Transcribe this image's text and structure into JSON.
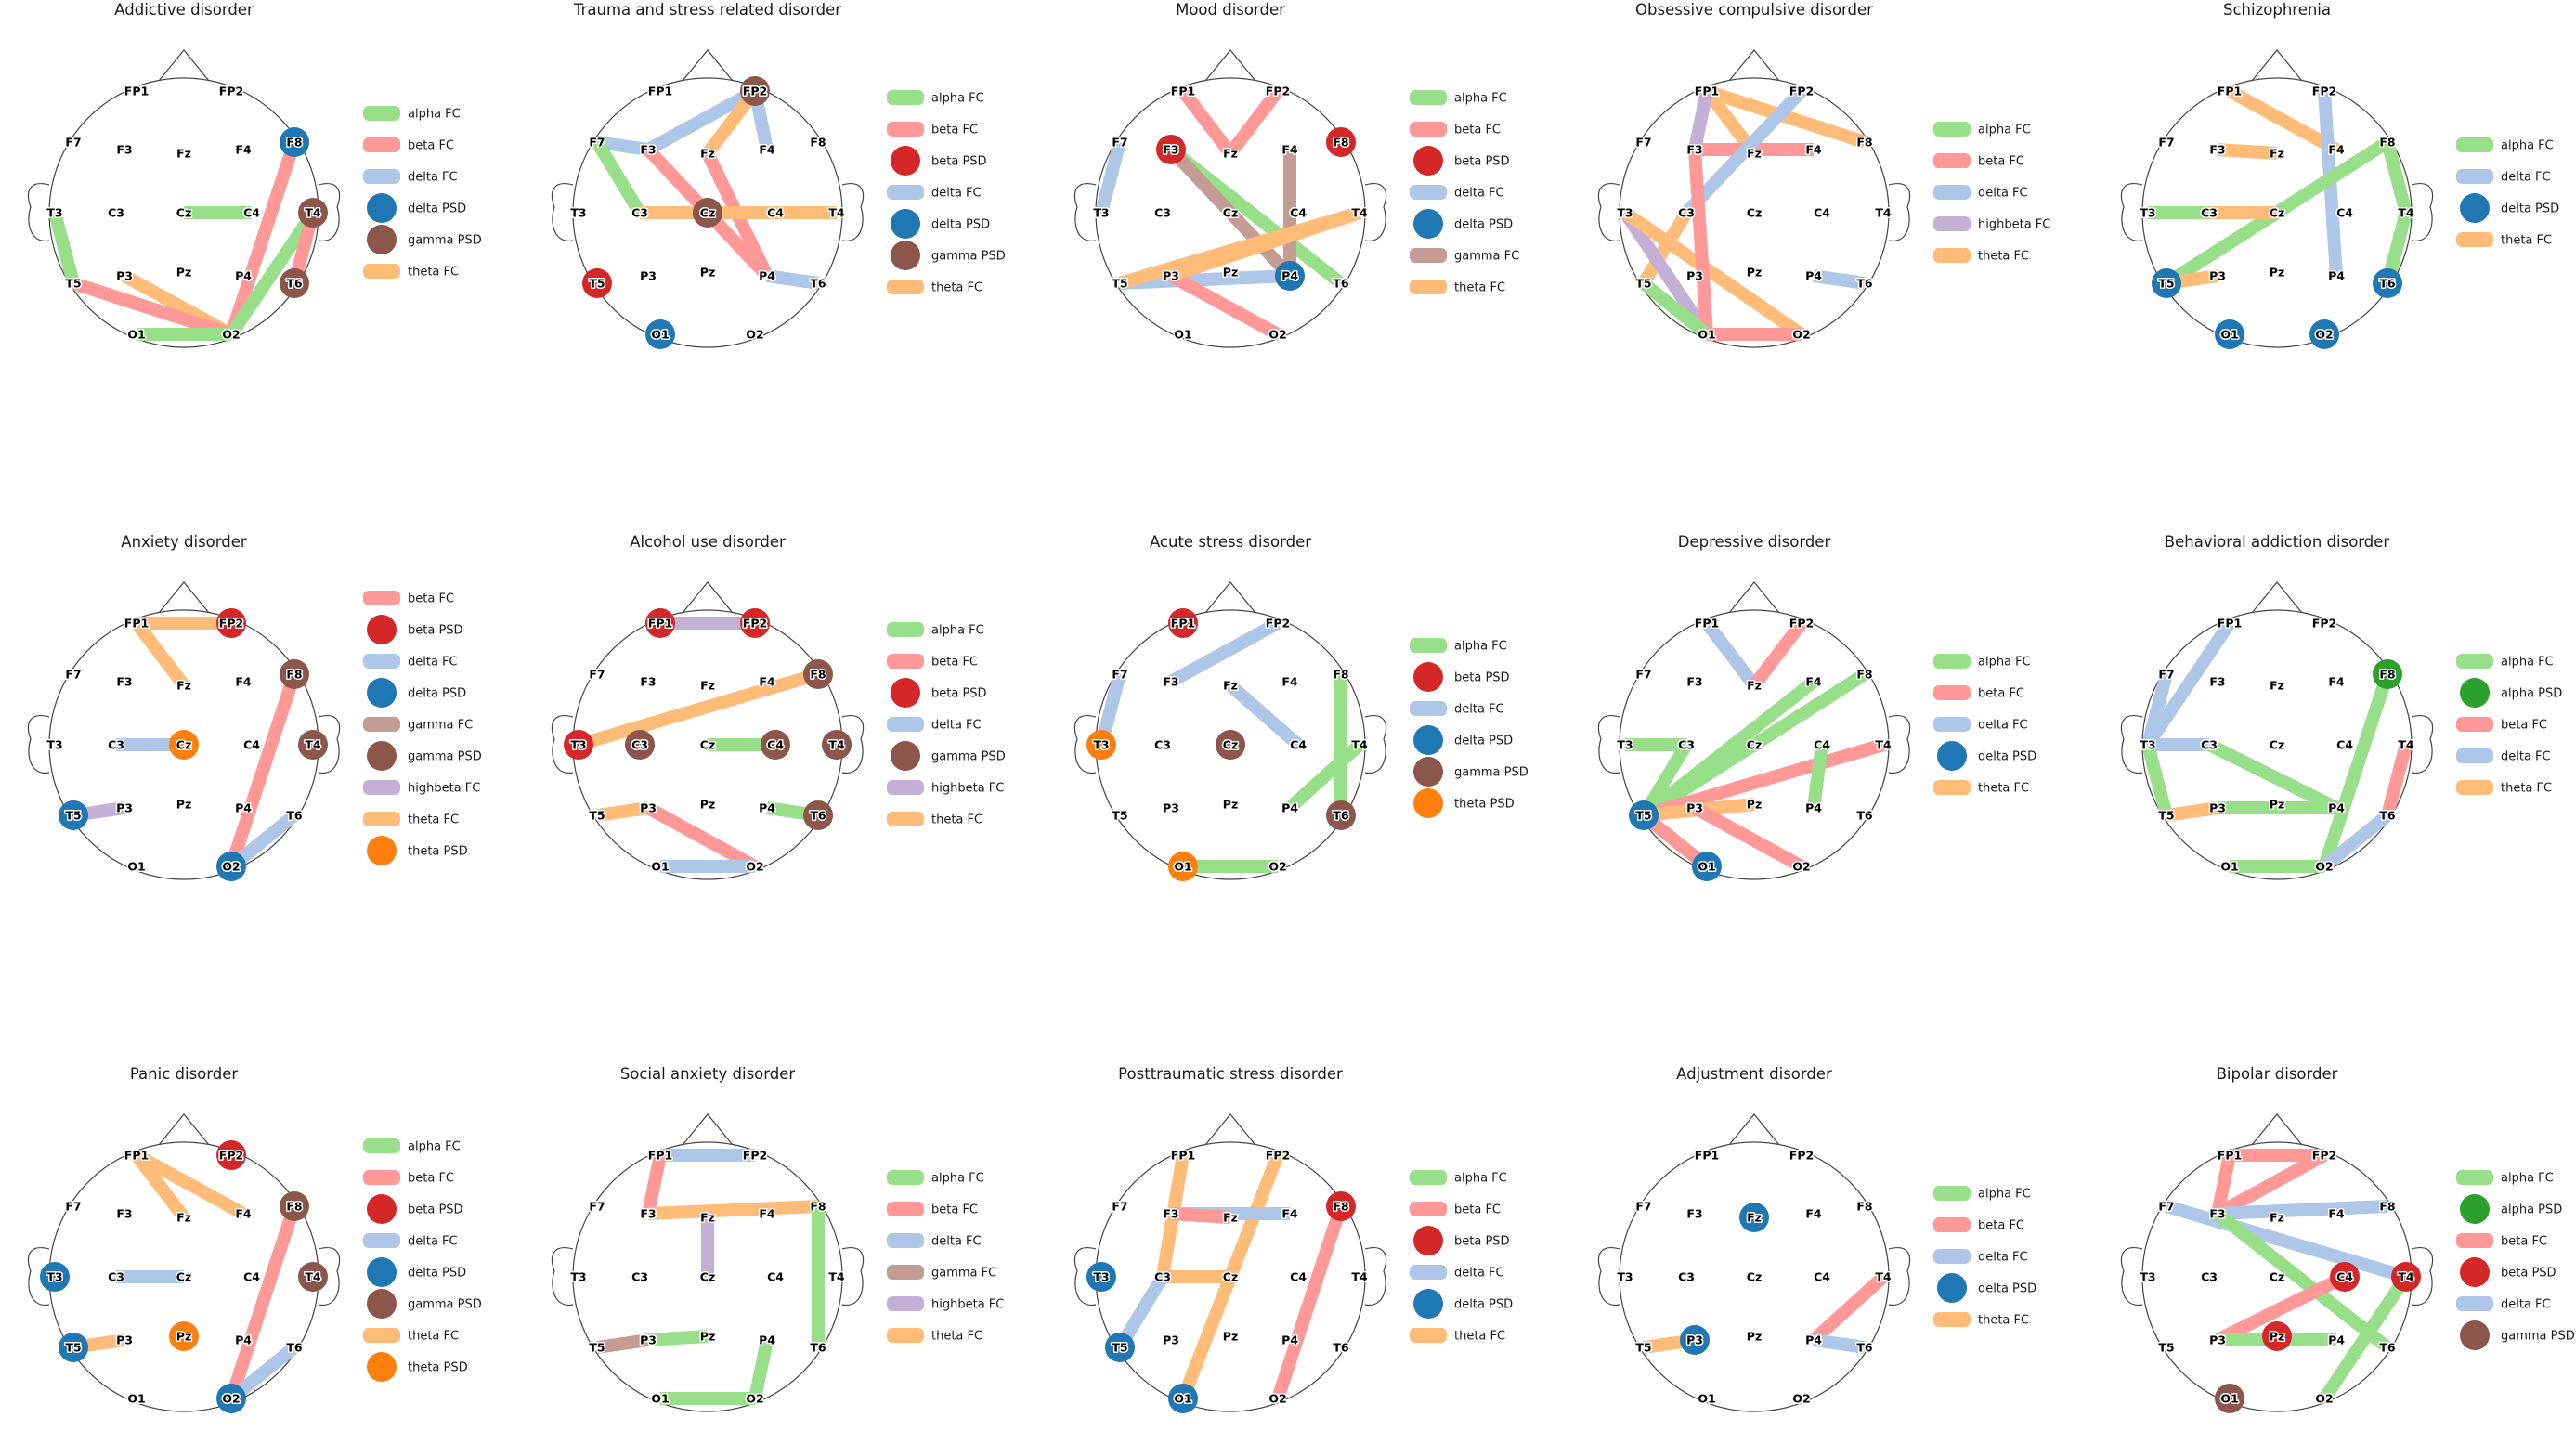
{
  "colors": {
    "alpha FC": "#98df8a",
    "beta FC": "#ff9896",
    "delta FC": "#aec7e8",
    "theta FC": "#ffbb78",
    "gamma FC": "#c49c94",
    "highbeta FC": "#c5b0d5",
    "alpha PSD": "#2ca02c",
    "beta PSD": "#d62728",
    "delta PSD": "#1f77b4",
    "gamma PSD": "#8c564b",
    "theta PSD": "#ff7f0e"
  },
  "electrodes": [
    "FP1",
    "FP2",
    "F7",
    "F3",
    "Fz",
    "F4",
    "F8",
    "T3",
    "C3",
    "Cz",
    "C4",
    "T4",
    "T5",
    "P3",
    "Pz",
    "P4",
    "T6",
    "O1",
    "O2"
  ],
  "panels": [
    {
      "title": "Addictive disorder",
      "fc": [
        [
          "T3",
          "T5",
          "alpha FC"
        ],
        [
          "T5",
          "O2",
          "theta FC"
        ],
        [
          "P3",
          "O2",
          "theta FC"
        ],
        [
          "T5",
          "O2",
          "beta FC"
        ],
        [
          "Cz",
          "C4",
          "alpha FC"
        ],
        [
          "O1",
          "O2",
          "alpha FC"
        ],
        [
          "O2",
          "F8",
          "beta FC"
        ],
        [
          "O2",
          "T4",
          "alpha FC"
        ],
        [
          "T6",
          "T4",
          "beta FC"
        ]
      ],
      "psd": [
        [
          "F8",
          "delta PSD"
        ],
        [
          "T4",
          "gamma PSD"
        ],
        [
          "T6",
          "gamma PSD"
        ]
      ],
      "legend": [
        "alpha FC",
        "beta FC",
        "delta FC",
        "delta PSD",
        "gamma PSD",
        "theta FC"
      ]
    },
    {
      "title": "Trauma and stress related disorder",
      "fc": [
        [
          "F7",
          "F3",
          "delta FC"
        ],
        [
          "F7",
          "C3",
          "alpha FC"
        ],
        [
          "F3",
          "FP2",
          "delta FC"
        ],
        [
          "F3",
          "P4",
          "beta FC"
        ],
        [
          "Fz",
          "FP2",
          "theta FC"
        ],
        [
          "Fz",
          "P4",
          "beta FC"
        ],
        [
          "FP2",
          "F4",
          "delta FC"
        ],
        [
          "C3",
          "C4",
          "theta FC"
        ],
        [
          "C4",
          "T4",
          "theta FC"
        ],
        [
          "P4",
          "T6",
          "delta FC"
        ]
      ],
      "psd": [
        [
          "FP2",
          "gamma PSD"
        ],
        [
          "Cz",
          "gamma PSD"
        ],
        [
          "T5",
          "beta PSD"
        ],
        [
          "O1",
          "delta PSD"
        ]
      ],
      "legend": [
        "alpha FC",
        "beta FC",
        "beta PSD",
        "delta FC",
        "delta PSD",
        "gamma PSD",
        "theta FC"
      ]
    },
    {
      "title": "Mood disorder",
      "fc": [
        [
          "FP1",
          "Fz",
          "beta FC"
        ],
        [
          "Fz",
          "FP2",
          "beta FC"
        ],
        [
          "F7",
          "T3",
          "delta FC"
        ],
        [
          "F3",
          "T6",
          "alpha FC"
        ],
        [
          "F3",
          "P4",
          "gamma FC"
        ],
        [
          "F4",
          "P4",
          "gamma FC"
        ],
        [
          "T5",
          "P4",
          "delta FC"
        ],
        [
          "T5",
          "T4",
          "theta FC"
        ],
        [
          "P3",
          "O2",
          "beta FC"
        ],
        [
          "P3",
          "T4",
          "theta FC"
        ]
      ],
      "psd": [
        [
          "F3",
          "beta PSD"
        ],
        [
          "F8",
          "beta PSD"
        ],
        [
          "P4",
          "delta PSD"
        ]
      ],
      "legend": [
        "alpha FC",
        "beta FC",
        "beta PSD",
        "delta FC",
        "delta PSD",
        "gamma FC",
        "theta FC"
      ]
    },
    {
      "title": "Obsessive compulsive disorder",
      "fc": [
        [
          "FP1",
          "F8",
          "theta FC"
        ],
        [
          "FP1",
          "Fz",
          "theta FC"
        ],
        [
          "F3",
          "F4",
          "beta FC"
        ],
        [
          "FP1",
          "F3",
          "highbeta FC"
        ],
        [
          "FP2",
          "C3",
          "delta FC"
        ],
        [
          "C3",
          "T5",
          "theta FC"
        ],
        [
          "T3",
          "O1",
          "highbeta FC"
        ],
        [
          "T3",
          "O2",
          "theta FC"
        ],
        [
          "F3",
          "O1",
          "beta FC"
        ],
        [
          "T5",
          "O1",
          "alpha FC"
        ],
        [
          "O1",
          "O2",
          "beta FC"
        ],
        [
          "P4",
          "T6",
          "delta FC"
        ]
      ],
      "psd": [],
      "legend": [
        "alpha FC",
        "beta FC",
        "delta FC",
        "highbeta FC",
        "theta FC"
      ]
    },
    {
      "title": "Schizophrenia",
      "fc": [
        [
          "FP1",
          "F4",
          "theta FC"
        ],
        [
          "F3",
          "Fz",
          "theta FC"
        ],
        [
          "FP2",
          "P4",
          "delta FC"
        ],
        [
          "F8",
          "T5",
          "alpha FC"
        ],
        [
          "F8",
          "T4",
          "alpha FC"
        ],
        [
          "T4",
          "T6",
          "alpha FC"
        ],
        [
          "T3",
          "C3",
          "alpha FC"
        ],
        [
          "C3",
          "Cz",
          "theta FC"
        ],
        [
          "T5",
          "P3",
          "theta FC"
        ]
      ],
      "psd": [
        [
          "T5",
          "delta PSD"
        ],
        [
          "T6",
          "delta PSD"
        ],
        [
          "O1",
          "delta PSD"
        ],
        [
          "O2",
          "delta PSD"
        ]
      ],
      "legend": [
        "alpha FC",
        "delta FC",
        "delta PSD",
        "theta FC"
      ]
    },
    {
      "title": "Anxiety disorder",
      "fc": [
        [
          "FP1",
          "FP2",
          "theta FC"
        ],
        [
          "FP1",
          "Fz",
          "theta FC"
        ],
        [
          "C3",
          "Cz",
          "delta FC"
        ],
        [
          "F8",
          "O2",
          "beta FC"
        ],
        [
          "T5",
          "P3",
          "highbeta FC"
        ],
        [
          "O2",
          "T6",
          "delta FC"
        ]
      ],
      "psd": [
        [
          "FP2",
          "beta PSD"
        ],
        [
          "F8",
          "gamma PSD"
        ],
        [
          "T4",
          "gamma PSD"
        ],
        [
          "Cz",
          "theta PSD"
        ],
        [
          "T5",
          "delta PSD"
        ],
        [
          "O2",
          "delta PSD"
        ]
      ],
      "legend": [
        "beta FC",
        "beta PSD",
        "delta FC",
        "delta PSD",
        "gamma FC",
        "gamma PSD",
        "highbeta FC",
        "theta FC",
        "theta PSD"
      ]
    },
    {
      "title": "Alcohol use disorder",
      "fc": [
        [
          "FP1",
          "FP2",
          "highbeta FC"
        ],
        [
          "T3",
          "F8",
          "theta FC"
        ],
        [
          "Cz",
          "C4",
          "alpha FC"
        ],
        [
          "T5",
          "P3",
          "theta FC"
        ],
        [
          "P3",
          "O2",
          "beta FC"
        ],
        [
          "O1",
          "O2",
          "delta FC"
        ],
        [
          "P4",
          "T6",
          "alpha FC"
        ]
      ],
      "psd": [
        [
          "FP1",
          "beta PSD"
        ],
        [
          "FP2",
          "beta PSD"
        ],
        [
          "F8",
          "gamma PSD"
        ],
        [
          "T3",
          "beta PSD"
        ],
        [
          "C3",
          "gamma PSD"
        ],
        [
          "C4",
          "gamma PSD"
        ],
        [
          "T4",
          "gamma PSD"
        ],
        [
          "T6",
          "gamma PSD"
        ]
      ],
      "legend": [
        "alpha FC",
        "beta FC",
        "beta PSD",
        "delta FC",
        "gamma PSD",
        "highbeta FC",
        "theta FC"
      ]
    },
    {
      "title": "Acute stress disorder",
      "fc": [
        [
          "F3",
          "FP2",
          "delta FC"
        ],
        [
          "F7",
          "T3",
          "delta FC"
        ],
        [
          "Fz",
          "C4",
          "delta FC"
        ],
        [
          "F8",
          "T6",
          "alpha FC"
        ],
        [
          "T4",
          "P4",
          "alpha FC"
        ],
        [
          "O1",
          "O2",
          "alpha FC"
        ]
      ],
      "psd": [
        [
          "FP1",
          "beta PSD"
        ],
        [
          "T3",
          "theta PSD"
        ],
        [
          "Cz",
          "gamma PSD"
        ],
        [
          "T6",
          "gamma PSD"
        ],
        [
          "O1",
          "theta PSD"
        ]
      ],
      "legend": [
        "alpha FC",
        "beta PSD",
        "delta FC",
        "delta PSD",
        "gamma PSD",
        "theta PSD"
      ]
    },
    {
      "title": "Depressive disorder",
      "fc": [
        [
          "FP1",
          "Fz",
          "delta FC"
        ],
        [
          "Fz",
          "FP2",
          "beta FC"
        ],
        [
          "T3",
          "C3",
          "alpha FC"
        ],
        [
          "C3",
          "T5",
          "alpha FC"
        ],
        [
          "T5",
          "F4",
          "alpha FC"
        ],
        [
          "T5",
          "F8",
          "alpha FC"
        ],
        [
          "T5",
          "T4",
          "beta FC"
        ],
        [
          "T5",
          "Pz",
          "theta FC"
        ],
        [
          "C4",
          "P4",
          "alpha FC"
        ],
        [
          "T5",
          "O1",
          "beta FC"
        ],
        [
          "P3",
          "O2",
          "beta FC"
        ]
      ],
      "psd": [
        [
          "T5",
          "delta PSD"
        ],
        [
          "O1",
          "delta PSD"
        ]
      ],
      "legend": [
        "alpha FC",
        "beta FC",
        "delta FC",
        "delta PSD",
        "theta FC"
      ]
    },
    {
      "title": "Behavioral addiction disorder",
      "fc": [
        [
          "FP1",
          "T3",
          "delta FC"
        ],
        [
          "F7",
          "T3",
          "delta FC"
        ],
        [
          "T3",
          "C3",
          "delta FC"
        ],
        [
          "C3",
          "P4",
          "alpha FC"
        ],
        [
          "T3",
          "T5",
          "alpha FC"
        ],
        [
          "T5",
          "P3",
          "theta FC"
        ],
        [
          "P3",
          "P4",
          "alpha FC"
        ],
        [
          "F8",
          "O2",
          "alpha FC"
        ],
        [
          "T4",
          "T6",
          "beta FC"
        ],
        [
          "O1",
          "O2",
          "alpha FC"
        ],
        [
          "O2",
          "T6",
          "delta FC"
        ]
      ],
      "psd": [
        [
          "F8",
          "alpha PSD"
        ]
      ],
      "legend": [
        "alpha FC",
        "alpha PSD",
        "beta FC",
        "delta FC",
        "theta FC"
      ]
    },
    {
      "title": "Panic disorder",
      "fc": [
        [
          "FP1",
          "F4",
          "theta FC"
        ],
        [
          "FP1",
          "Fz",
          "theta FC"
        ],
        [
          "C3",
          "Cz",
          "delta FC"
        ],
        [
          "F8",
          "O2",
          "beta FC"
        ],
        [
          "T5",
          "P3",
          "theta FC"
        ],
        [
          "O2",
          "T6",
          "delta FC"
        ]
      ],
      "psd": [
        [
          "FP2",
          "beta PSD"
        ],
        [
          "F8",
          "gamma PSD"
        ],
        [
          "T3",
          "delta PSD"
        ],
        [
          "T4",
          "gamma PSD"
        ],
        [
          "T5",
          "delta PSD"
        ],
        [
          "Pz",
          "theta PSD"
        ],
        [
          "O2",
          "delta PSD"
        ]
      ],
      "legend": [
        "alpha FC",
        "beta FC",
        "beta PSD",
        "delta FC",
        "delta PSD",
        "gamma PSD",
        "theta FC",
        "theta PSD"
      ]
    },
    {
      "title": "Social anxiety disorder",
      "fc": [
        [
          "FP1",
          "FP2",
          "delta FC"
        ],
        [
          "FP1",
          "F3",
          "beta FC"
        ],
        [
          "F3",
          "F8",
          "theta FC"
        ],
        [
          "Fz",
          "Cz",
          "highbeta FC"
        ],
        [
          "F8",
          "T6",
          "alpha FC"
        ],
        [
          "T5",
          "P3",
          "gamma FC"
        ],
        [
          "P3",
          "Pz",
          "alpha FC"
        ],
        [
          "O1",
          "O2",
          "alpha FC"
        ],
        [
          "O2",
          "P4",
          "alpha FC"
        ]
      ],
      "psd": [],
      "legend": [
        "alpha FC",
        "beta FC",
        "delta FC",
        "gamma FC",
        "highbeta FC",
        "theta FC"
      ]
    },
    {
      "title": "Posttraumatic stress disorder",
      "fc": [
        [
          "FP1",
          "C3",
          "theta FC"
        ],
        [
          "C3",
          "Cz",
          "theta FC"
        ],
        [
          "FP2",
          "Cz",
          "theta FC"
        ],
        [
          "Cz",
          "O1",
          "theta FC"
        ],
        [
          "F3",
          "F4",
          "delta FC"
        ],
        [
          "F3",
          "Fz",
          "beta FC"
        ],
        [
          "C3",
          "T5",
          "delta FC"
        ],
        [
          "F8",
          "O2",
          "beta FC"
        ]
      ],
      "psd": [
        [
          "F8",
          "beta PSD"
        ],
        [
          "T3",
          "delta PSD"
        ],
        [
          "T5",
          "delta PSD"
        ],
        [
          "O1",
          "delta PSD"
        ]
      ],
      "legend": [
        "alpha FC",
        "beta FC",
        "beta PSD",
        "delta FC",
        "delta PSD",
        "theta FC"
      ]
    },
    {
      "title": "Adjustment disorder",
      "fc": [
        [
          "T5",
          "P3",
          "theta FC"
        ],
        [
          "P4",
          "T4",
          "beta FC"
        ],
        [
          "P4",
          "T6",
          "delta FC"
        ]
      ],
      "psd": [
        [
          "Fz",
          "delta PSD"
        ],
        [
          "P3",
          "delta PSD"
        ]
      ],
      "legend": [
        "alpha FC",
        "beta FC",
        "delta FC",
        "delta PSD",
        "theta FC"
      ]
    },
    {
      "title": "Bipolar disorder",
      "fc": [
        [
          "FP1",
          "FP2",
          "beta FC"
        ],
        [
          "FP1",
          "F3",
          "beta FC"
        ],
        [
          "F3",
          "FP2",
          "beta FC"
        ],
        [
          "F3",
          "F8",
          "delta FC"
        ],
        [
          "F7",
          "T4",
          "delta FC"
        ],
        [
          "F3",
          "T6",
          "alpha FC"
        ],
        [
          "T4",
          "O2",
          "alpha FC"
        ],
        [
          "C4",
          "P3",
          "beta FC"
        ],
        [
          "P3",
          "P4",
          "alpha FC"
        ]
      ],
      "psd": [
        [
          "C4",
          "beta PSD"
        ],
        [
          "T4",
          "beta PSD"
        ],
        [
          "Pz",
          "beta PSD"
        ],
        [
          "O1",
          "gamma PSD"
        ]
      ],
      "legend": [
        "alpha FC",
        "alpha PSD",
        "beta FC",
        "beta PSD",
        "delta FC",
        "gamma PSD"
      ]
    }
  ]
}
